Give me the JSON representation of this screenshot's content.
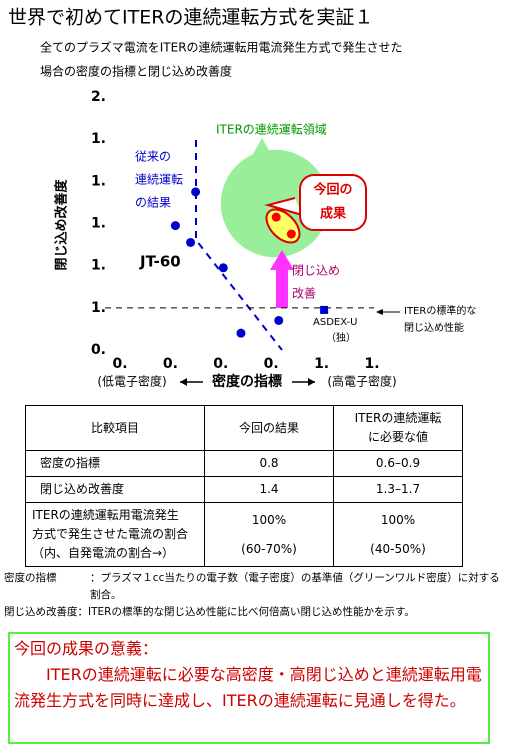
{
  "header": {
    "title": "世界で初めてITERの連続運転方式を実証１",
    "subtitle": [
      "全てのプラズマ電流をITERの連続運転用電流発生方式で発生させた",
      "場合の密度の指標と閉じ込め改善度"
    ]
  },
  "chart_data": {
    "type": "scatter",
    "x_label": "密度の指標",
    "y_label": "閉じ込め改善度",
    "xlim": [
      0.2,
      1.2
    ],
    "ylim": [
      0.8,
      2.0
    ],
    "xticks": [
      {
        "value": 0.2,
        "label": "0."
      },
      {
        "value": 0.4,
        "label": "0."
      },
      {
        "value": 0.6,
        "label": "0."
      },
      {
        "value": 0.8,
        "label": "0."
      },
      {
        "value": 1.0,
        "label": "1."
      },
      {
        "value": 1.2,
        "label": "1."
      }
    ],
    "yticks": [
      {
        "value": 0.8,
        "label": "0."
      },
      {
        "value": 1.0,
        "label": "1."
      },
      {
        "value": 1.2,
        "label": "1."
      },
      {
        "value": 1.4,
        "label": "1."
      },
      {
        "value": 1.6,
        "label": "1."
      },
      {
        "value": 1.8,
        "label": "1."
      },
      {
        "value": 2.0,
        "label": "2."
      }
    ],
    "series": [
      {
        "name": "JT-60",
        "color": "#0000cc",
        "x": [
          0.5,
          0.42,
          0.48,
          0.61,
          0.83,
          0.68
        ],
        "values": [
          1.55,
          1.39,
          1.31,
          1.19,
          0.94,
          0.88
        ]
      },
      {
        "color": "#ff0000",
        "x": [
          0.82,
          0.88
        ],
        "values": [
          1.43,
          1.35
        ]
      },
      {
        "name": "ASDEX-U",
        "color": "#0000cc",
        "x": [
          1.01
        ],
        "values": [
          0.99
        ]
      }
    ],
    "iter_standard": 1.0,
    "iter_region": {
      "xlim": [
        0.6,
        1.03
      ],
      "ylim": [
        1.24,
        1.75
      ],
      "color": "#99ee99"
    },
    "annotations": {
      "iter_region": "ITERの連続運転領域",
      "previous": [
        "従来の",
        "連続運転",
        "の結果"
      ],
      "result": [
        "今回の",
        "成果"
      ],
      "improvement": [
        "閉じ込め",
        "改善"
      ],
      "iter_standard": [
        "ITERの標準的な",
        "閉じ込め性能"
      ],
      "asdex_country": "（独）",
      "x_low": "(低電子密度)",
      "x_high": "(高電子密度)"
    }
  },
  "table": {
    "header": [
      "比較項目",
      "今回の結果",
      [
        "ITERの連続運転",
        "に必要な値"
      ]
    ],
    "rows": [
      [
        "密度の指標",
        "0.8",
        "0.6–0.9"
      ],
      [
        "閉じ込め改善度",
        "1.4",
        "1.3–1.7"
      ],
      [
        [
          "ITERの連続運転用電流発生",
          "方式で発生させた電流の割合",
          "（内、自発電流の割合→）"
        ],
        [
          "100%",
          "(60-70%)"
        ],
        [
          "100%",
          "(40-50%)"
        ]
      ]
    ]
  },
  "notes": [
    {
      "term": "密度の指標",
      "text": "：プラズマ１cc当たりの電子数（電子密度）の基準値（グリーンワルド密度）に対する割合。"
    },
    {
      "term": "閉じ込め改善度",
      "text": "：ITERの標準的な閉じ込め性能に比べ何倍高い閉じ込め性能かを示す。"
    }
  ],
  "summary": {
    "heading": "今回の成果の意義：",
    "body": "ITERの連続運転に必要な高密度・高閉じ込めと連続運転用電流発生方式を同時に達成し、ITERの連続運転に見通しを得た。"
  }
}
